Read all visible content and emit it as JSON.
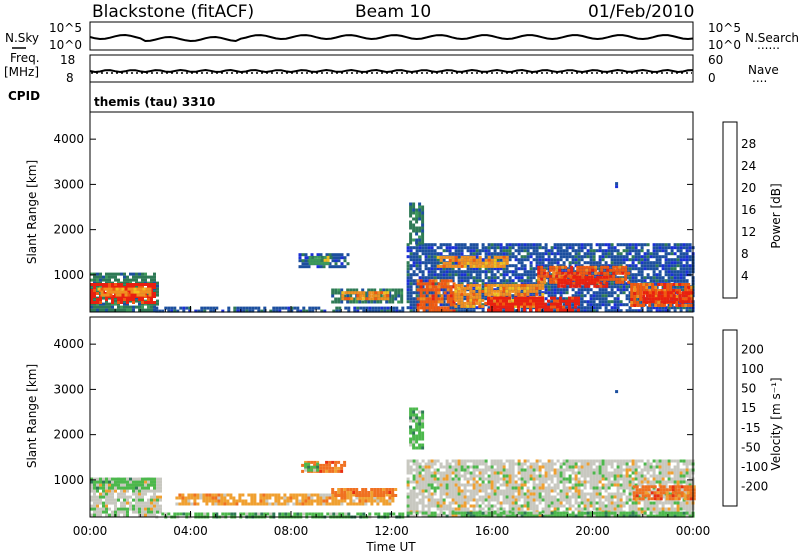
{
  "header": {
    "station": "Blackstone (fitACF)",
    "beam": "Beam 10",
    "date": "01/Feb/2010"
  },
  "labels": {
    "nsky": "N.Sky",
    "nsearch": "N.Search",
    "freq": "Freq.",
    "mhz": "[MHz]",
    "nave": "Nave",
    "cpid": "CPID",
    "cpid_value": "themis (tau) 3310",
    "dots": "......",
    "dots_short": "...."
  },
  "noise_panel": {
    "left_ticks": [
      "10^5",
      "10^0"
    ],
    "right_ticks": [
      "10^5",
      "10^0"
    ]
  },
  "freq_panel": {
    "left_ticks": [
      "18",
      "8"
    ],
    "right_ticks": [
      "60",
      "0"
    ]
  },
  "colors": {
    "power": [
      "#1a2fd6",
      "#1c4f9e",
      "#2e7a55",
      "#3d9a5a",
      "#f0c020",
      "#f09020",
      "#f05a10",
      "#e82010"
    ],
    "velocity": [
      "#1a2fd6",
      "#1c4f9e",
      "#2e7a55",
      "#4cb84c",
      "#c8c8c0",
      "#f0a030",
      "#f07020",
      "#e83010",
      "#e81a10"
    ]
  },
  "chart_data": [
    {
      "type": "heatmap",
      "name": "power",
      "xlabel": "",
      "ylabel": "Slant Range [km]",
      "ylim": [
        180,
        4600
      ],
      "yticks": [
        "1000",
        "2000",
        "3000",
        "4000"
      ],
      "colorbar_label": "Power [dB]",
      "colorbar_ticks": [
        "4",
        "8",
        "12",
        "16",
        "20",
        "24",
        "28"
      ],
      "regions": [
        {
          "t": [
            0,
            2.7
          ],
          "r": [
            200,
            1050
          ],
          "c": 2
        },
        {
          "t": [
            0,
            2.6
          ],
          "r": [
            380,
            820
          ],
          "c": 7
        },
        {
          "t": [
            0.3,
            2.4
          ],
          "r": [
            560,
            720
          ],
          "c": 5
        },
        {
          "t": [
            2.6,
            12.4
          ],
          "r": [
            180,
            300
          ],
          "c": 1
        },
        {
          "t": [
            9.6,
            12.4
          ],
          "r": [
            380,
            700
          ],
          "c": 2
        },
        {
          "t": [
            10.0,
            11.8
          ],
          "r": [
            460,
            640
          ],
          "c": 5
        },
        {
          "t": [
            8.3,
            10.3
          ],
          "r": [
            1200,
            1480
          ],
          "c": 1
        },
        {
          "t": [
            8.7,
            9.6
          ],
          "r": [
            1250,
            1420
          ],
          "c": 3
        },
        {
          "t": [
            12.6,
            24.0
          ],
          "r": [
            180,
            1700
          ],
          "c": 1
        },
        {
          "t": [
            12.7,
            13.2
          ],
          "r": [
            1700,
            2600
          ],
          "c": 2
        },
        {
          "t": [
            13.0,
            14.5
          ],
          "r": [
            220,
            900
          ],
          "c": 6
        },
        {
          "t": [
            14.5,
            18.0
          ],
          "r": [
            300,
            800
          ],
          "c": 5
        },
        {
          "t": [
            15.8,
            19.4
          ],
          "r": [
            200,
            520
          ],
          "c": 7
        },
        {
          "t": [
            13.8,
            16.6
          ],
          "r": [
            1200,
            1420
          ],
          "c": 5
        },
        {
          "t": [
            17.8,
            21.5
          ],
          "r": [
            820,
            1200
          ],
          "c": 6
        },
        {
          "t": [
            18.6,
            20.6
          ],
          "r": [
            720,
            980
          ],
          "c": 7
        },
        {
          "t": [
            21.5,
            24.0
          ],
          "r": [
            300,
            820
          ],
          "c": 6
        },
        {
          "t": [
            22.0,
            24.0
          ],
          "r": [
            420,
            640
          ],
          "c": 7
        },
        {
          "t": [
            20.9,
            21.0
          ],
          "r": [
            2950,
            3050
          ],
          "c": 1
        }
      ]
    },
    {
      "type": "heatmap",
      "name": "velocity",
      "xlabel": "Time UT",
      "ylabel": "Slant Range [km]",
      "ylim": [
        180,
        4600
      ],
      "yticks": [
        "1000",
        "2000",
        "3000",
        "4000"
      ],
      "colorbar_label": "Velocity [m s⁻¹]",
      "colorbar_ticks": [
        "200",
        "100",
        "50",
        "15",
        "-15",
        "-50",
        "-100",
        "-200"
      ],
      "xticks": [
        "00:00",
        "04:00",
        "08:00",
        "12:00",
        "16:00",
        "20:00",
        "00:00"
      ],
      "regions": [
        {
          "t": [
            0,
            2.8
          ],
          "r": [
            200,
            1050
          ],
          "c": 4
        },
        {
          "t": [
            0,
            2.6
          ],
          "r": [
            850,
            1050
          ],
          "c": 3
        },
        {
          "t": [
            2.6,
            12.4
          ],
          "r": [
            180,
            280
          ],
          "c": 3
        },
        {
          "t": [
            3.4,
            12.0
          ],
          "r": [
            500,
            700
          ],
          "c": 5
        },
        {
          "t": [
            9.6,
            12.2
          ],
          "r": [
            680,
            820
          ],
          "c": 6
        },
        {
          "t": [
            8.4,
            10.1
          ],
          "r": [
            1180,
            1420
          ],
          "c": 6
        },
        {
          "t": [
            8.4,
            9.0
          ],
          "r": [
            1200,
            1380
          ],
          "c": 3
        },
        {
          "t": [
            12.6,
            24.0
          ],
          "r": [
            200,
            1450
          ],
          "c": 4
        },
        {
          "t": [
            12.7,
            13.2
          ],
          "r": [
            1700,
            2600
          ],
          "c": 3
        },
        {
          "t": [
            12.6,
            24.0
          ],
          "r": [
            180,
            300
          ],
          "c": 3
        },
        {
          "t": [
            21.6,
            24.0
          ],
          "r": [
            560,
            880
          ],
          "c": 6
        },
        {
          "t": [
            20.9,
            21.0
          ],
          "r": [
            2950,
            3050
          ],
          "c": 1
        }
      ]
    }
  ]
}
